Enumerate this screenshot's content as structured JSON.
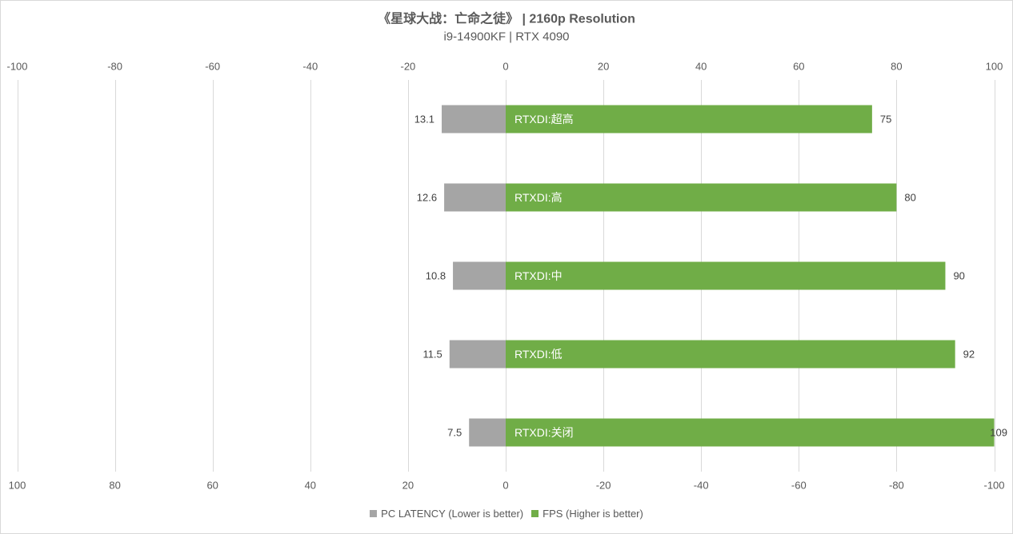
{
  "chart_data": {
    "type": "bar",
    "orientation": "horizontal",
    "title": "《星球大战：亡命之徒》 | 2160p Resolution",
    "subtitle": "i9-14900KF | RTX 4090",
    "categories": [
      "RTXDI:超高",
      "RTXDI:高",
      "RTXDI:中",
      "RTXDI:低",
      "RTXDI:关闭"
    ],
    "series": [
      {
        "name": "PC LATENCY (Lower is better)",
        "values": [
          13.1,
          12.6,
          10.8,
          11.5,
          7.5
        ],
        "color": "#a5a5a5",
        "axis": "bottom"
      },
      {
        "name": "FPS (Higher is better)",
        "values": [
          75,
          80,
          90,
          92,
          109
        ],
        "color": "#70ad47",
        "axis": "top"
      }
    ],
    "x_top": {
      "range": [
        -100,
        100
      ],
      "ticks": [
        -100,
        -80,
        -60,
        -40,
        -20,
        0,
        20,
        40,
        60,
        80,
        100
      ]
    },
    "x_bottom": {
      "range": [
        100,
        -100
      ],
      "ticks": [
        100,
        80,
        60,
        40,
        20,
        0,
        -20,
        -40,
        -60,
        -80,
        -100
      ]
    },
    "grid": true,
    "legend": "bottom"
  },
  "colors": {
    "background": "#ffffff",
    "border": "#d9d9d9",
    "grid": "#d9d9d9",
    "title": "#595959",
    "tick": "#595959",
    "value_label": "#404040",
    "category_label": "#ffffff",
    "legend_text": "#595959"
  }
}
